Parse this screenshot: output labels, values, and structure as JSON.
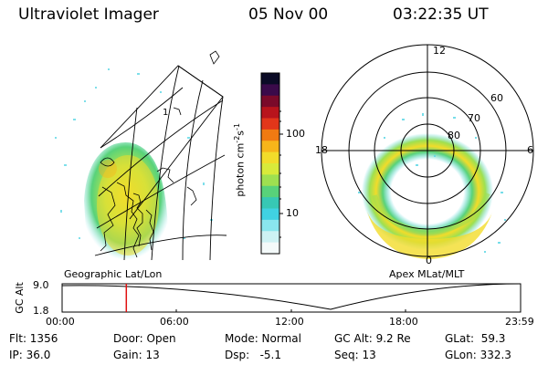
{
  "header": {
    "instrument": "Ultraviolet Imager",
    "date": "05 Nov 00",
    "time": "03:22:35 UT"
  },
  "colorbar": {
    "unit_label": "photon cm",
    "unit_exp1": "-2",
    "unit_s": "s",
    "unit_exp2": "-1",
    "tick_100": "100",
    "tick_10": "10",
    "colors": [
      "#0b0b26",
      "#3a0a4a",
      "#7a0a2a",
      "#b8141c",
      "#e2361a",
      "#f07a12",
      "#f7b51a",
      "#f2dc2a",
      "#d8ea3a",
      "#9ee050",
      "#58d27a",
      "#37c8b4",
      "#40d2e2",
      "#8ae6ee",
      "#cdf2f4",
      "#f4fafa"
    ]
  },
  "left_panel": {
    "caption": "Geographic Lat/Lon",
    "meridian_mark": "1"
  },
  "right_panel": {
    "caption": "Apex MLat/MLT",
    "mlt_12": "12",
    "mlt_18": "18",
    "mlt_6": "6",
    "mlt_0": "0",
    "lat_60": "60",
    "lat_70": "70",
    "lat_80": "80"
  },
  "timeline": {
    "ylabel": "GC Alt",
    "ymax": "9.0",
    "ymin": "1.8",
    "ticks": [
      "00:00",
      "06:00",
      "12:00",
      "18:00",
      "23:59"
    ],
    "current_time_fraction": 0.14
  },
  "info": {
    "flt": "Flt: 1356",
    "ip": "IP: 36.0",
    "door": "Door: Open",
    "gain": "Gain: 13",
    "mode": "Mode: Normal",
    "dsp": "Dsp:   -5.1",
    "gcalt": "GC Alt: 9.2 Re",
    "seq": "Seq: 13",
    "glat": "GLat:  59.3",
    "glon": "GLon: 332.3"
  }
}
